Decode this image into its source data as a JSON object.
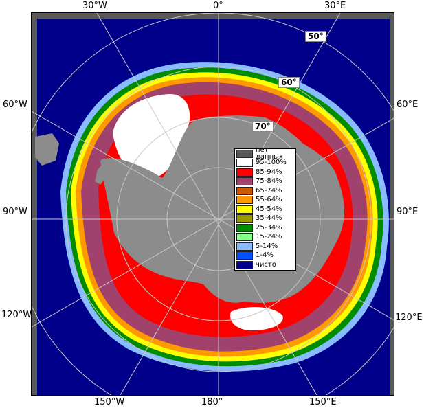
{
  "map": {
    "colors": {
      "ocean": "#00008b",
      "land": "#8c8c8c",
      "nodata": "#595959",
      "grid": "#c8c8c8"
    },
    "longitude_labels": {
      "top_left": "30°W",
      "top_center": "0°",
      "top_right": "30°E",
      "left_upper": "60°W",
      "left_middle": "90°W",
      "left_lower": "120°W",
      "right_upper": "60°E",
      "right_middle": "90°E",
      "right_lower": "120°E",
      "bottom_left": "150°W",
      "bottom_center": "180°",
      "bottom_right": "150°E"
    },
    "latitude_labels": [
      "50°",
      "60°",
      "70°"
    ]
  },
  "legend": {
    "items": [
      {
        "label": "нет данных",
        "color": "#595959"
      },
      {
        "label": "95-100%",
        "color": "#ffffff"
      },
      {
        "label": "85-94%",
        "color": "#ff0000"
      },
      {
        "label": "75-84%",
        "color": "#a0426c"
      },
      {
        "label": "65-74%",
        "color": "#cc5a00"
      },
      {
        "label": "55-64%",
        "color": "#ff9900"
      },
      {
        "label": "45-54%",
        "color": "#ffff00"
      },
      {
        "label": "35-44%",
        "color": "#999900"
      },
      {
        "label": "25-34%",
        "color": "#008c00"
      },
      {
        "label": "15-24%",
        "color": "#88ff88"
      },
      {
        "label": "5-14%",
        "color": "#88bbff"
      },
      {
        "label": "1-4%",
        "color": "#0050ff"
      },
      {
        "label": "чисто",
        "color": "#00008b"
      }
    ]
  }
}
